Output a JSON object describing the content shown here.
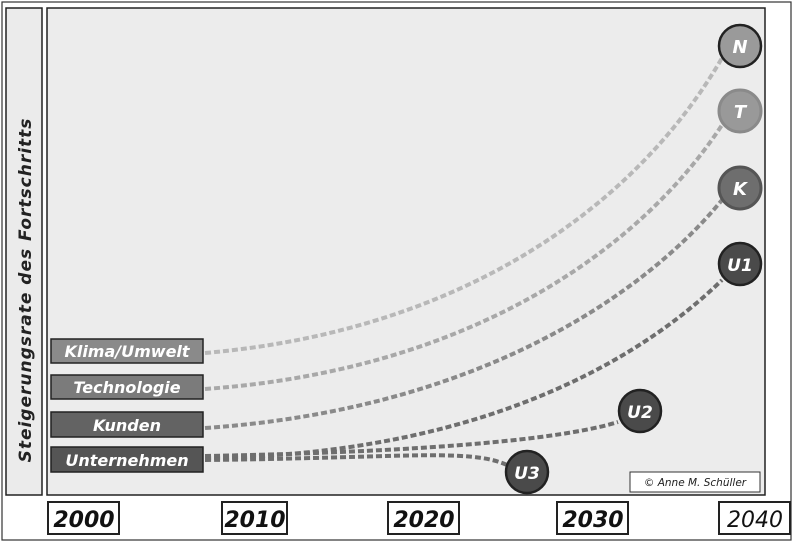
{
  "y_axis_label": "Steigerungsrate des Fortschritts",
  "copyright": "© Anne M. Schüller",
  "years": [
    "2000",
    "2010",
    "2020",
    "2030",
    "2040"
  ],
  "categories": [
    {
      "label": "Klima/Umwelt",
      "fill": "#8a8a8a",
      "line": "#b5b5b5"
    },
    {
      "label": "Technologie",
      "fill": "#7b7b7b",
      "line": "#a5a5a5"
    },
    {
      "label": "Kunden",
      "fill": "#636363",
      "line": "#888888"
    },
    {
      "label": "Unternehmen",
      "fill": "#555555",
      "line": "#6c6c6c"
    }
  ],
  "endpoints": [
    {
      "label": "N",
      "category": "Klima/Umwelt",
      "fill": "#9a9a9a"
    },
    {
      "label": "T",
      "category": "Technologie",
      "fill": "#999999"
    },
    {
      "label": "K",
      "category": "Kunden",
      "fill": "#6e6e6e"
    },
    {
      "label": "U1",
      "category": "Unternehmen",
      "fill": "#4a4a4a"
    },
    {
      "label": "U2",
      "category": "Unternehmen",
      "fill": "#4a4a4a"
    },
    {
      "label": "U3",
      "category": "Unternehmen",
      "fill": "#4a4a4a"
    }
  ]
}
